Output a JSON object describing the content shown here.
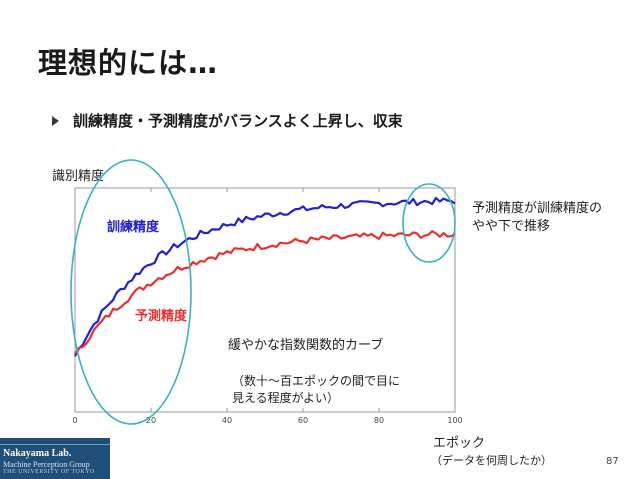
{
  "slide": {
    "title": "理想的には…",
    "bullet": "訓練精度・予測精度がバランスよく上昇し、収束",
    "page_number": "87"
  },
  "annotations": {
    "y_axis_label": "識別精度",
    "x_axis_label": "エポック",
    "x_axis_sublabel": "（データを何周したか）",
    "train_series_label": "訓練精度",
    "test_series_label": "予測精度",
    "converge_note": "予測精度が訓練精度のやや下で推移",
    "curve_note": "緩やかな指数関数的カーブ",
    "epoch_note": "（数十～百エポックの間で目に見える程度がよい）"
  },
  "logo": {
    "line1": "Nakayama Lab.",
    "line2": "Machine Perception Group",
    "line3": "THE UNIVERSITY OF TOKYO"
  },
  "colors": {
    "train": "#2222cc",
    "test": "#e83232",
    "ellipse": "#3bb0c4"
  },
  "chart_data": {
    "type": "line",
    "x": {
      "min": 0,
      "max": 100,
      "ticks": [
        0,
        20,
        40,
        60,
        80,
        100
      ]
    },
    "ylim": [
      0,
      1
    ],
    "grid": false,
    "series": [
      {
        "name": "訓練精度",
        "color": "#2222cc",
        "a": 0.25,
        "b": 0.95,
        "tau": 22
      },
      {
        "name": "予測精度",
        "color": "#e83232",
        "a": 0.25,
        "b": 0.8,
        "tau": 22
      }
    ]
  }
}
